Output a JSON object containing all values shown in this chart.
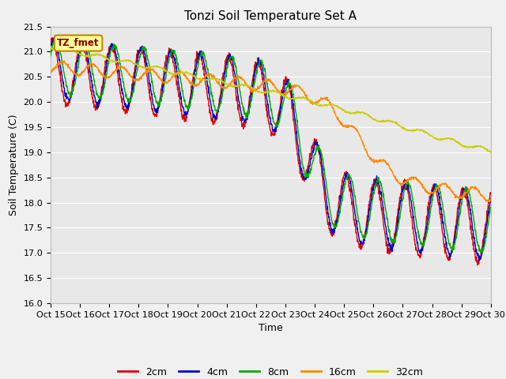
{
  "title": "Tonzi Soil Temperature Set A",
  "xlabel": "Time",
  "ylabel": "Soil Temperature (C)",
  "ylim": [
    16.0,
    21.5
  ],
  "x_tick_labels": [
    "Oct 15",
    "Oct 16",
    "Oct 17",
    "Oct 18",
    "Oct 19",
    "Oct 20",
    "Oct 21",
    "Oct 22",
    "Oct 23",
    "Oct 24",
    "Oct 25",
    "Oct 26",
    "Oct 27",
    "Oct 28",
    "Oct 29",
    "Oct 30"
  ],
  "colors": {
    "2cm": "#dd0000",
    "4cm": "#0000cc",
    "8cm": "#00aa00",
    "16cm": "#ff8800",
    "32cm": "#cccc00"
  },
  "legend_label": "TZ_fmet",
  "background_color": "#f0f0f0",
  "plot_background": "#e8e8e8",
  "title_fontsize": 11,
  "axis_fontsize": 9,
  "tick_fontsize": 8
}
